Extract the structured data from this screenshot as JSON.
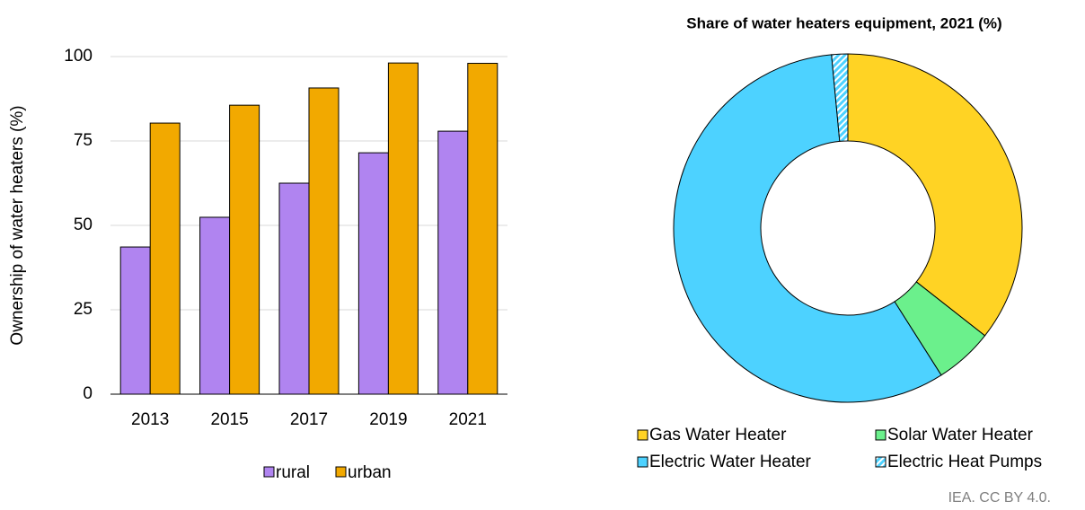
{
  "chart_data": [
    {
      "type": "bar",
      "y_label": "Ownership of water heaters (%)",
      "categories": [
        "2013",
        "2015",
        "2017",
        "2019",
        "2021"
      ],
      "series": [
        {
          "name": "rural",
          "color": "#b084f0",
          "values": [
            43.6,
            52.4,
            62.5,
            71.5,
            77.9
          ]
        },
        {
          "name": "urban",
          "color": "#f2a900",
          "values": [
            80.3,
            85.6,
            90.7,
            98.1,
            98
          ]
        }
      ],
      "ylim": [
        0,
        100
      ],
      "yticks": [
        0,
        25,
        50,
        75,
        100
      ],
      "grid": true,
      "legend": "bottom"
    },
    {
      "type": "pie",
      "title": "Share of water heaters equipment, 2021 (%)",
      "categories": [
        "Gas Water Heater",
        "Solar Water Heater",
        "Electric Water Heater",
        "Electric Heat Pumps"
      ],
      "values": [
        35.6,
        5.4,
        57.5,
        1.5
      ],
      "colors": [
        "#ffd324",
        "#6bf08c",
        "#4dd2ff",
        "#4dd2ff"
      ],
      "hatched": [
        false,
        false,
        false,
        true
      ],
      "donut": true,
      "legend": "bottom"
    }
  ],
  "footer": "IEA. CC BY 4.0."
}
